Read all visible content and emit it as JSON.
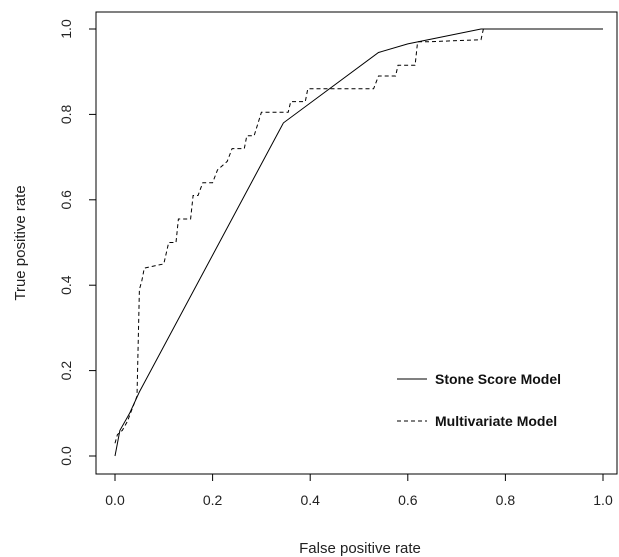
{
  "chart_data": {
    "type": "line",
    "title": "",
    "xlabel": "False positive rate",
    "ylabel": "True positive rate",
    "xlim": [
      0,
      1
    ],
    "ylim": [
      0,
      1
    ],
    "xticks": [
      "0.0",
      "0.2",
      "0.4",
      "0.6",
      "0.8",
      "1.0"
    ],
    "yticks": [
      "0.0",
      "0.2",
      "0.4",
      "0.6",
      "0.8",
      "1.0"
    ],
    "grid": false,
    "legend_position": "bottom-right",
    "series": [
      {
        "name": "Stone Score Model",
        "line_style": "solid",
        "points": [
          [
            0,
            0
          ],
          [
            0.01,
            0.06
          ],
          [
            0.03,
            0.1
          ],
          [
            0.05,
            0.15
          ],
          [
            0.345,
            0.78
          ],
          [
            0.54,
            0.945
          ],
          [
            0.6,
            0.965
          ],
          [
            0.75,
            1.0
          ],
          [
            1.0,
            1.0
          ]
        ]
      },
      {
        "name": "Multivariate Model",
        "line_style": "dashed",
        "points": [
          [
            0,
            0.03
          ],
          [
            0.005,
            0.05
          ],
          [
            0.015,
            0.06
          ],
          [
            0.025,
            0.08
          ],
          [
            0.035,
            0.11
          ],
          [
            0.045,
            0.14
          ],
          [
            0.05,
            0.39
          ],
          [
            0.055,
            0.41
          ],
          [
            0.06,
            0.44
          ],
          [
            0.1,
            0.45
          ],
          [
            0.11,
            0.5
          ],
          [
            0.125,
            0.5
          ],
          [
            0.13,
            0.555
          ],
          [
            0.155,
            0.555
          ],
          [
            0.16,
            0.61
          ],
          [
            0.17,
            0.61
          ],
          [
            0.18,
            0.64
          ],
          [
            0.2,
            0.64
          ],
          [
            0.21,
            0.67
          ],
          [
            0.23,
            0.69
          ],
          [
            0.24,
            0.72
          ],
          [
            0.265,
            0.72
          ],
          [
            0.27,
            0.75
          ],
          [
            0.285,
            0.75
          ],
          [
            0.3,
            0.805
          ],
          [
            0.355,
            0.805
          ],
          [
            0.36,
            0.83
          ],
          [
            0.39,
            0.83
          ],
          [
            0.395,
            0.86
          ],
          [
            0.53,
            0.86
          ],
          [
            0.54,
            0.89
          ],
          [
            0.575,
            0.89
          ],
          [
            0.58,
            0.915
          ],
          [
            0.615,
            0.915
          ],
          [
            0.62,
            0.97
          ],
          [
            0.64,
            0.97
          ],
          [
            0.75,
            0.975
          ],
          [
            0.755,
            1.0
          ],
          [
            1.0,
            1.0
          ]
        ]
      }
    ]
  }
}
